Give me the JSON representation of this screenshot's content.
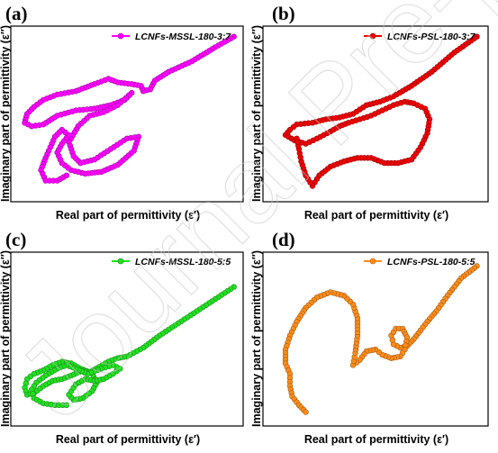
{
  "watermark": "Journal Pre-proof",
  "chart_data": [
    {
      "type": "line",
      "panel_label": "(a)",
      "series": [
        {
          "name": "LCNFs-MSSL-180-3:7",
          "color": "#ff00ff",
          "points": [
            [
              0.96,
              0.94
            ],
            [
              0.88,
              0.88
            ],
            [
              0.78,
              0.8
            ],
            [
              0.68,
              0.74
            ],
            [
              0.62,
              0.69
            ],
            [
              0.6,
              0.64
            ],
            [
              0.57,
              0.63
            ],
            [
              0.56,
              0.66
            ],
            [
              0.52,
              0.67
            ],
            [
              0.46,
              0.68
            ],
            [
              0.42,
              0.7
            ],
            [
              0.36,
              0.67
            ],
            [
              0.28,
              0.63
            ],
            [
              0.2,
              0.61
            ],
            [
              0.14,
              0.58
            ],
            [
              0.1,
              0.54
            ],
            [
              0.07,
              0.5
            ],
            [
              0.06,
              0.45
            ],
            [
              0.09,
              0.43
            ],
            [
              0.14,
              0.44
            ],
            [
              0.2,
              0.49
            ],
            [
              0.28,
              0.52
            ],
            [
              0.36,
              0.53
            ],
            [
              0.43,
              0.55
            ],
            [
              0.49,
              0.58
            ],
            [
              0.52,
              0.62
            ],
            [
              0.46,
              0.55
            ],
            [
              0.4,
              0.51
            ],
            [
              0.34,
              0.49
            ],
            [
              0.29,
              0.43
            ],
            [
              0.25,
              0.34
            ],
            [
              0.27,
              0.26
            ],
            [
              0.3,
              0.22
            ],
            [
              0.36,
              0.24
            ],
            [
              0.43,
              0.3
            ],
            [
              0.5,
              0.36
            ],
            [
              0.55,
              0.37
            ],
            [
              0.53,
              0.29
            ],
            [
              0.46,
              0.21
            ],
            [
              0.39,
              0.17
            ],
            [
              0.32,
              0.16
            ],
            [
              0.26,
              0.18
            ],
            [
              0.22,
              0.22
            ],
            [
              0.2,
              0.28
            ],
            [
              0.22,
              0.33
            ],
            [
              0.25,
              0.38
            ],
            [
              0.22,
              0.41
            ],
            [
              0.19,
              0.37
            ],
            [
              0.17,
              0.31
            ],
            [
              0.15,
              0.25
            ],
            [
              0.13,
              0.18
            ],
            [
              0.15,
              0.12
            ],
            [
              0.2,
              0.12
            ],
            [
              0.24,
              0.15
            ]
          ]
        }
      ],
      "xlabel": "Real part of permittivity (ε′)",
      "ylabel": "Imaginary part of permittivity (ε″)"
    },
    {
      "type": "line",
      "panel_label": "(b)",
      "series": [
        {
          "name": "LCNFs-PSL-180-3:7",
          "color": "#ee0000",
          "points": [
            [
              0.95,
              0.94
            ],
            [
              0.85,
              0.85
            ],
            [
              0.75,
              0.74
            ],
            [
              0.66,
              0.66
            ],
            [
              0.58,
              0.6
            ],
            [
              0.52,
              0.57
            ],
            [
              0.46,
              0.55
            ],
            [
              0.4,
              0.5
            ],
            [
              0.34,
              0.48
            ],
            [
              0.28,
              0.47
            ],
            [
              0.22,
              0.45
            ],
            [
              0.15,
              0.44
            ],
            [
              0.12,
              0.41
            ],
            [
              0.1,
              0.38
            ],
            [
              0.14,
              0.35
            ],
            [
              0.19,
              0.33
            ],
            [
              0.24,
              0.36
            ],
            [
              0.3,
              0.4
            ],
            [
              0.34,
              0.43
            ],
            [
              0.38,
              0.45
            ],
            [
              0.43,
              0.47
            ],
            [
              0.48,
              0.49
            ],
            [
              0.53,
              0.52
            ],
            [
              0.58,
              0.55
            ],
            [
              0.63,
              0.57
            ],
            [
              0.67,
              0.56
            ],
            [
              0.72,
              0.53
            ],
            [
              0.74,
              0.47
            ],
            [
              0.73,
              0.39
            ],
            [
              0.7,
              0.31
            ],
            [
              0.66,
              0.24
            ],
            [
              0.6,
              0.22
            ],
            [
              0.54,
              0.22
            ],
            [
              0.48,
              0.25
            ],
            [
              0.42,
              0.25
            ],
            [
              0.36,
              0.23
            ],
            [
              0.3,
              0.2
            ],
            [
              0.25,
              0.15
            ],
            [
              0.22,
              0.09
            ],
            [
              0.19,
              0.15
            ],
            [
              0.17,
              0.23
            ],
            [
              0.16,
              0.3
            ],
            [
              0.15,
              0.36
            ]
          ]
        }
      ],
      "xlabel": "Real part of permittivity (ε′)",
      "ylabel": "Imaginary part of permittivity (ε″)"
    },
    {
      "type": "line",
      "panel_label": "(c)",
      "series": [
        {
          "name": "LCNFs-MSSL-180-5:5",
          "color": "#22e022",
          "points": [
            [
              0.96,
              0.8
            ],
            [
              0.88,
              0.73
            ],
            [
              0.8,
              0.66
            ],
            [
              0.72,
              0.59
            ],
            [
              0.64,
              0.52
            ],
            [
              0.57,
              0.45
            ],
            [
              0.5,
              0.4
            ],
            [
              0.46,
              0.39
            ],
            [
              0.42,
              0.37
            ],
            [
              0.38,
              0.34
            ],
            [
              0.34,
              0.31
            ],
            [
              0.3,
              0.33
            ],
            [
              0.26,
              0.36
            ],
            [
              0.22,
              0.37
            ],
            [
              0.18,
              0.35
            ],
            [
              0.14,
              0.32
            ],
            [
              0.1,
              0.3
            ],
            [
              0.07,
              0.27
            ],
            [
              0.06,
              0.22
            ],
            [
              0.07,
              0.18
            ],
            [
              0.1,
              0.19
            ],
            [
              0.14,
              0.23
            ],
            [
              0.18,
              0.26
            ],
            [
              0.22,
              0.27
            ],
            [
              0.26,
              0.29
            ],
            [
              0.31,
              0.32
            ],
            [
              0.35,
              0.3
            ],
            [
              0.37,
              0.25
            ],
            [
              0.35,
              0.2
            ],
            [
              0.31,
              0.16
            ],
            [
              0.27,
              0.15
            ],
            [
              0.25,
              0.18
            ],
            [
              0.28,
              0.24
            ],
            [
              0.32,
              0.27
            ],
            [
              0.36,
              0.26
            ],
            [
              0.4,
              0.27
            ],
            [
              0.44,
              0.3
            ],
            [
              0.47,
              0.33
            ],
            [
              0.44,
              0.35
            ],
            [
              0.39,
              0.33
            ],
            [
              0.33,
              0.3
            ],
            [
              0.28,
              0.33
            ],
            [
              0.24,
              0.35
            ],
            [
              0.2,
              0.33
            ],
            [
              0.15,
              0.29
            ],
            [
              0.11,
              0.25
            ],
            [
              0.09,
              0.21
            ],
            [
              0.1,
              0.16
            ],
            [
              0.14,
              0.13
            ],
            [
              0.19,
              0.12
            ],
            [
              0.24,
              0.12
            ]
          ]
        }
      ],
      "xlabel": "Real part of permittivity (ε′)",
      "ylabel": "Imaginary part of permittivity (ε″)"
    },
    {
      "type": "line",
      "panel_label": "(d)",
      "series": [
        {
          "name": "LCNFs-PSL-180-5:5",
          "color": "#ff8c1a",
          "points": [
            [
              0.95,
              0.92
            ],
            [
              0.88,
              0.85
            ],
            [
              0.82,
              0.75
            ],
            [
              0.77,
              0.66
            ],
            [
              0.73,
              0.6
            ],
            [
              0.7,
              0.55
            ],
            [
              0.67,
              0.5
            ],
            [
              0.64,
              0.46
            ],
            [
              0.61,
              0.45
            ],
            [
              0.58,
              0.47
            ],
            [
              0.57,
              0.52
            ],
            [
              0.59,
              0.56
            ],
            [
              0.62,
              0.56
            ],
            [
              0.64,
              0.51
            ],
            [
              0.63,
              0.44
            ],
            [
              0.61,
              0.4
            ],
            [
              0.57,
              0.39
            ],
            [
              0.53,
              0.41
            ],
            [
              0.5,
              0.44
            ],
            [
              0.46,
              0.43
            ],
            [
              0.43,
              0.38
            ],
            [
              0.4,
              0.35
            ],
            [
              0.41,
              0.42
            ],
            [
              0.42,
              0.52
            ],
            [
              0.42,
              0.62
            ],
            [
              0.4,
              0.7
            ],
            [
              0.36,
              0.75
            ],
            [
              0.3,
              0.77
            ],
            [
              0.24,
              0.74
            ],
            [
              0.19,
              0.68
            ],
            [
              0.15,
              0.6
            ],
            [
              0.12,
              0.52
            ],
            [
              0.1,
              0.44
            ],
            [
              0.1,
              0.36
            ],
            [
              0.12,
              0.3
            ],
            [
              0.12,
              0.23
            ],
            [
              0.13,
              0.17
            ],
            [
              0.16,
              0.12
            ],
            [
              0.19,
              0.08
            ]
          ]
        }
      ],
      "xlabel": "Real part of permittivity (ε′)",
      "ylabel": "Imaginary part of permittivity (ε″)"
    }
  ]
}
